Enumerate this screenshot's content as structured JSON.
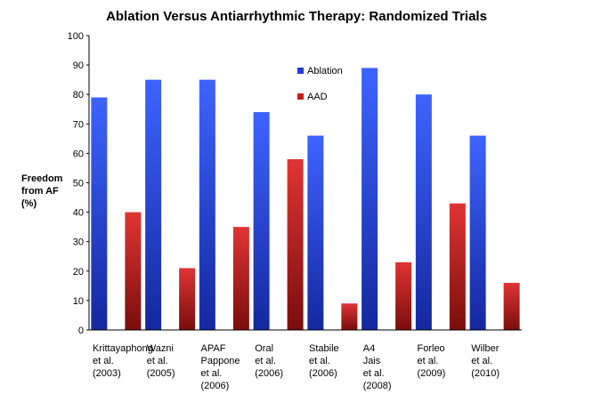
{
  "chart_data": {
    "type": "bar",
    "title": "Ablation Versus Antiarrhythmic Therapy: Randomized Trials",
    "ylabel_lines": [
      "Freedom",
      "from AF",
      "(%)"
    ],
    "xlabel": "",
    "ylim": [
      0,
      100
    ],
    "yticks": [
      0,
      10,
      20,
      30,
      40,
      50,
      60,
      70,
      80,
      90,
      100
    ],
    "grid": false,
    "legend_position": "top-center",
    "categories": [
      [
        "Krittayaphong",
        "et al.",
        "(2003)"
      ],
      [
        "Wazni",
        "et al.",
        "(2005)"
      ],
      [
        "APAF",
        "Pappone",
        "et al.",
        "(2006)"
      ],
      [
        "Oral",
        "et al.",
        "(2006)"
      ],
      [
        "Stabile",
        "et al.",
        "(2006)"
      ],
      [
        "A4",
        "Jais",
        "et al.",
        "(2008)"
      ],
      [
        "Forleo",
        "et al.",
        "(2009)"
      ],
      [
        "Wilber",
        "et al.",
        "(2010)"
      ]
    ],
    "series": [
      {
        "name": "Ablation",
        "color": "#1f3fd6",
        "values": [
          79,
          85,
          85,
          74,
          66,
          89,
          80,
          66
        ]
      },
      {
        "name": "AAD",
        "color": "#c41d1d",
        "values": [
          40,
          21,
          35,
          58,
          9,
          23,
          43,
          16
        ]
      }
    ]
  }
}
